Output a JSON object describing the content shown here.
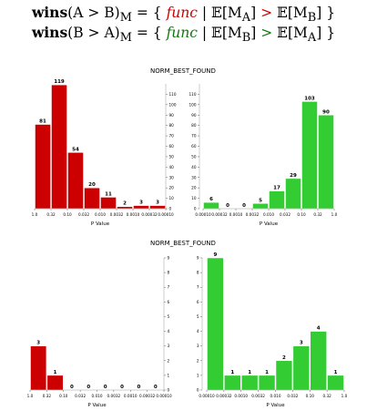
{
  "formulas": [
    {
      "lhs_bold": "wins",
      "lhs_rest": "(A > B)",
      "lhs_sub": "M",
      "eq_open": " = { ",
      "func": "func",
      "bar": " | ",
      "left": "𝔼[M",
      "left_sub": "A",
      "left_close": "]",
      "op": " > ",
      "right": "𝔼[M",
      "right_sub": "B",
      "right_close": "] }",
      "color": "#cc0000"
    },
    {
      "lhs_bold": "wins",
      "lhs_rest": "(B > A)",
      "lhs_sub": "M",
      "eq_open": " = { ",
      "func": "func",
      "bar": " | ",
      "left": "𝔼[M",
      "left_sub": "B",
      "left_close": "]",
      "op": " > ",
      "right": "𝔼[M",
      "right_sub": "A",
      "right_close": "] }",
      "color": "#117711"
    }
  ],
  "chart_data": [
    {
      "type": "bar",
      "title": "NORM_BEST_FOUND",
      "panels": [
        {
          "side": "red",
          "color": "#cc0000",
          "xlabel": "P Value",
          "x_ticks": [
            "1.0",
            "0.32",
            "0.10",
            "0.032",
            "0.010",
            "0.0032",
            "0.0010",
            "0.00032",
            "0.00010"
          ],
          "values": [
            81,
            119,
            54,
            20,
            11,
            2,
            3,
            3
          ],
          "ylim": [
            0,
            120
          ],
          "y_axis": "right",
          "y_ticks": [
            "0",
            "10",
            "20",
            "30",
            "40",
            "50",
            "60",
            "70",
            "80",
            "90",
            "100",
            "110"
          ]
        },
        {
          "side": "green",
          "color": "#33cc33",
          "xlabel": "P Value",
          "x_ticks": [
            "0.00010",
            "0.00032",
            "0.0010",
            "0.0032",
            "0.010",
            "0.032",
            "0.10",
            "0.32",
            "1.0"
          ],
          "values": [
            6,
            0,
            0,
            5,
            17,
            29,
            103,
            90
          ],
          "ylim": [
            0,
            120
          ],
          "y_axis": "left",
          "y_ticks": [
            "0",
            "10",
            "20",
            "30",
            "40",
            "50",
            "60",
            "70",
            "80",
            "90",
            "100",
            "110"
          ]
        }
      ]
    },
    {
      "type": "bar",
      "title": "NORM_BEST_FOUND",
      "panels": [
        {
          "side": "red",
          "color": "#cc0000",
          "xlabel": "P Value",
          "x_ticks": [
            "1.0",
            "0.32",
            "0.10",
            "0.032",
            "0.010",
            "0.0032",
            "0.0010",
            "0.00032",
            "0.00010"
          ],
          "values": [
            3,
            1,
            0,
            0,
            0,
            0,
            0,
            0
          ],
          "ylim": [
            0,
            9
          ],
          "y_axis": "right",
          "y_ticks": [
            "0",
            "1",
            "2",
            "3",
            "4",
            "5",
            "6",
            "7",
            "8",
            "9"
          ]
        },
        {
          "side": "green",
          "color": "#33cc33",
          "xlabel": "P Value",
          "x_ticks": [
            "0.00010",
            "0.00032",
            "0.0010",
            "0.0032",
            "0.010",
            "0.032",
            "0.10",
            "0.32",
            "1.0"
          ],
          "values": [
            9,
            1,
            1,
            1,
            2,
            3,
            4,
            1
          ],
          "ylim": [
            0,
            9
          ],
          "y_axis": "left",
          "y_ticks": [
            "0",
            "1",
            "2",
            "3",
            "4",
            "5",
            "6",
            "7",
            "8",
            "9"
          ]
        }
      ]
    }
  ]
}
